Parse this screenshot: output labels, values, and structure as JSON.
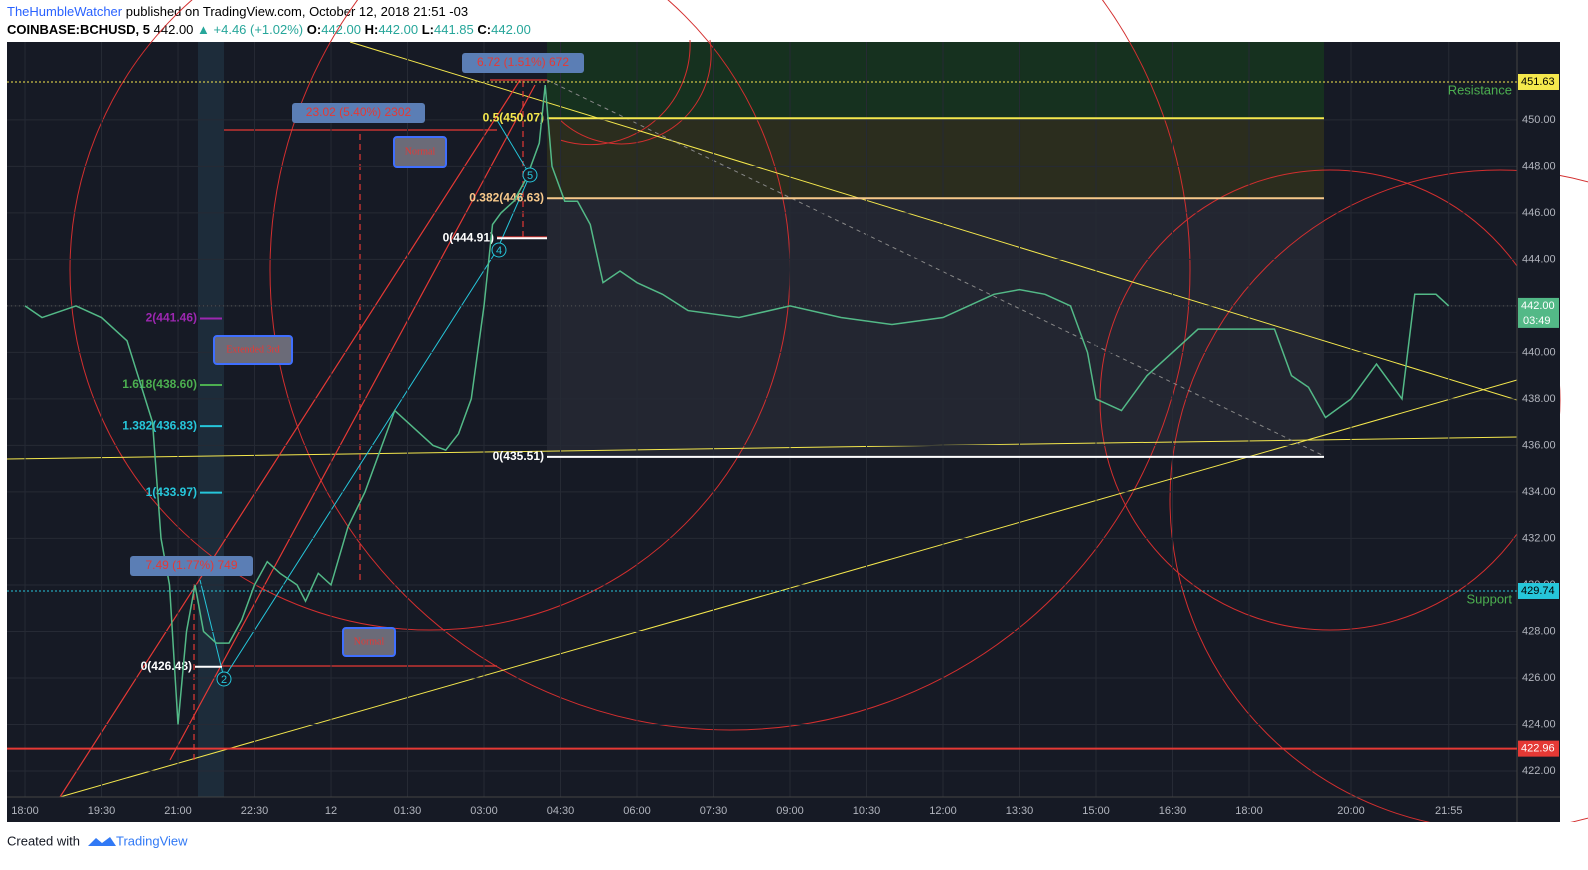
{
  "header": {
    "author": "TheHumbleWatcher",
    "published": "published on TradingView.com, October 12, 2018 21:51 -03",
    "symbol": "COINBASE:BCHUSD, 5",
    "price": "442.00",
    "change": "▲ +4.46 (+1.02%)",
    "o_label": "O:",
    "o": "442.00",
    "h_label": "H:",
    "h": "442.00",
    "l_label": "L:",
    "l": "441.85",
    "c_label": "C:",
    "c": "442.00"
  },
  "footer": {
    "created": "Created with",
    "brand": "TradingView"
  },
  "chart_data": {
    "type": "line",
    "x": [
      0,
      20,
      60,
      90,
      120,
      150,
      160,
      170,
      180,
      190,
      200,
      210,
      225,
      240,
      255,
      270,
      285,
      300,
      320,
      330,
      345,
      360,
      380,
      400,
      420,
      435,
      450,
      465,
      480,
      495,
      510,
      525,
      540,
      550,
      560,
      575,
      590,
      605,
      612,
      620,
      635,
      650,
      665,
      680,
      700,
      720,
      750,
      780,
      840,
      900,
      960,
      1020,
      1080,
      1110,
      1140,
      1170,
      1200,
      1230,
      1250,
      1260,
      1290,
      1320,
      1350,
      1380,
      1440,
      1470,
      1490,
      1510,
      1530,
      1560,
      1590,
      1620,
      1635,
      1660,
      1675
    ],
    "series": [
      {
        "name": "BCHUSD",
        "color": "#53b987",
        "values": [
          442,
          441.5,
          442,
          441.5,
          440.5,
          437,
          432,
          430,
          424,
          428,
          430,
          428,
          427.5,
          427.5,
          428.5,
          430,
          431,
          430.5,
          430,
          429.3,
          430.5,
          430,
          432.5,
          434,
          436,
          437.5,
          437,
          436.5,
          436,
          435.8,
          436.5,
          438,
          442,
          445.5,
          446,
          446.5,
          447.5,
          449,
          451.5,
          448,
          446.5,
          446.5,
          445.5,
          443,
          443.5,
          443,
          442.5,
          441.8,
          441.5,
          442,
          441.5,
          441.2,
          441.5,
          442,
          442.5,
          442.7,
          442.5,
          442,
          440,
          438,
          437.5,
          439,
          440,
          441,
          441,
          441,
          439,
          438.5,
          437.2,
          438,
          439.5,
          438,
          442.5,
          442.5,
          442
        ]
      }
    ],
    "xlim": [
      -21.2,
      1755.3
    ],
    "ylim": [
      420.88,
      453.35
    ],
    "xticks": [
      {
        "value": 0,
        "label": "18:00"
      },
      {
        "value": 90,
        "label": "19:30"
      },
      {
        "value": 180,
        "label": "21:00"
      },
      {
        "value": 270,
        "label": "22:30"
      },
      {
        "value": 360,
        "label": "12"
      },
      {
        "value": 450,
        "label": "01:30"
      },
      {
        "value": 540,
        "label": "03:00"
      },
      {
        "value": 630,
        "label": "04:30"
      },
      {
        "value": 720,
        "label": "06:00"
      },
      {
        "value": 810,
        "label": "07:30"
      },
      {
        "value": 900,
        "label": "09:00"
      },
      {
        "value": 990,
        "label": "10:30"
      },
      {
        "value": 1080,
        "label": "12:00"
      },
      {
        "value": 1170,
        "label": "13:30"
      },
      {
        "value": 1260,
        "label": "15:00"
      },
      {
        "value": 1350,
        "label": "16:30"
      },
      {
        "value": 1440,
        "label": "18:00"
      },
      {
        "value": 1560,
        "label": "20:00"
      },
      {
        "value": 1675,
        "label": "21:55"
      }
    ],
    "yticks": [
      {
        "value": 422,
        "label": "422.00"
      },
      {
        "value": 424,
        "label": "424.00"
      },
      {
        "value": 426,
        "label": "426.00"
      },
      {
        "value": 428,
        "label": "428.00"
      },
      {
        "value": 430,
        "label": "430.00"
      },
      {
        "value": 432,
        "label": "432.00"
      },
      {
        "value": 434,
        "label": "434.00"
      },
      {
        "value": 436,
        "label": "436.00"
      },
      {
        "value": 438,
        "label": "438.00"
      },
      {
        "value": 440,
        "label": "440.00"
      },
      {
        "value": 442,
        "label": "442.00"
      },
      {
        "value": 444,
        "label": "444.00"
      },
      {
        "value": 446,
        "label": "446.00"
      },
      {
        "value": 448,
        "label": "448.00"
      },
      {
        "value": 450,
        "label": "450.00"
      }
    ],
    "grid": true,
    "levels": [
      {
        "name": "Resistance",
        "value": 451.63,
        "color": "#f5e84d",
        "label_color": "#4caf50"
      },
      {
        "name": "Support",
        "value": 429.74,
        "color": "#26c6da",
        "label_color": "#4caf50"
      },
      {
        "value": 422.96,
        "color": "#e53935"
      }
    ],
    "last_price": {
      "value": 442,
      "label": "442.00",
      "countdown": "03:49",
      "color": "#53b987"
    },
    "fib_levels": [
      {
        "label": "0.5(450.07)",
        "value": 450.07,
        "color": "#f5e84d"
      },
      {
        "label": "0.382(446.63)",
        "value": 446.63,
        "color": "#f7c98b"
      },
      {
        "label": "0(444.91)",
        "value": 444.91,
        "color": "#ffffff"
      },
      {
        "label": "0(435.51)",
        "value": 435.51,
        "color": "#ffffff"
      },
      {
        "label": "2(441.46)",
        "value": 441.46,
        "color": "#9c27b0"
      },
      {
        "label": "1.618(438.60)",
        "value": 438.6,
        "color": "#4caf50"
      },
      {
        "label": "1.382(436.83)",
        "value": 436.83,
        "color": "#26c6da"
      },
      {
        "label": "1(433.97)",
        "value": 433.97,
        "color": "#26c6da"
      },
      {
        "label": "0(426.48)",
        "value": 426.48,
        "color": "#ffffff"
      }
    ],
    "annotations": [
      {
        "text": "23.02 (5.40%) 2302",
        "style": "measure"
      },
      {
        "text": "6.72 (1.51%) 672",
        "style": "measure"
      },
      {
        "text": "7.49 (1.77%) 749",
        "style": "measure"
      },
      {
        "text": "Normal",
        "style": "callout"
      },
      {
        "text": "Extended 3rd",
        "style": "callout"
      },
      {
        "text": "Normal",
        "style": "callout"
      },
      {
        "text": "2",
        "style": "wave"
      },
      {
        "text": "4",
        "style": "wave"
      },
      {
        "text": "5",
        "style": "wave"
      }
    ]
  }
}
